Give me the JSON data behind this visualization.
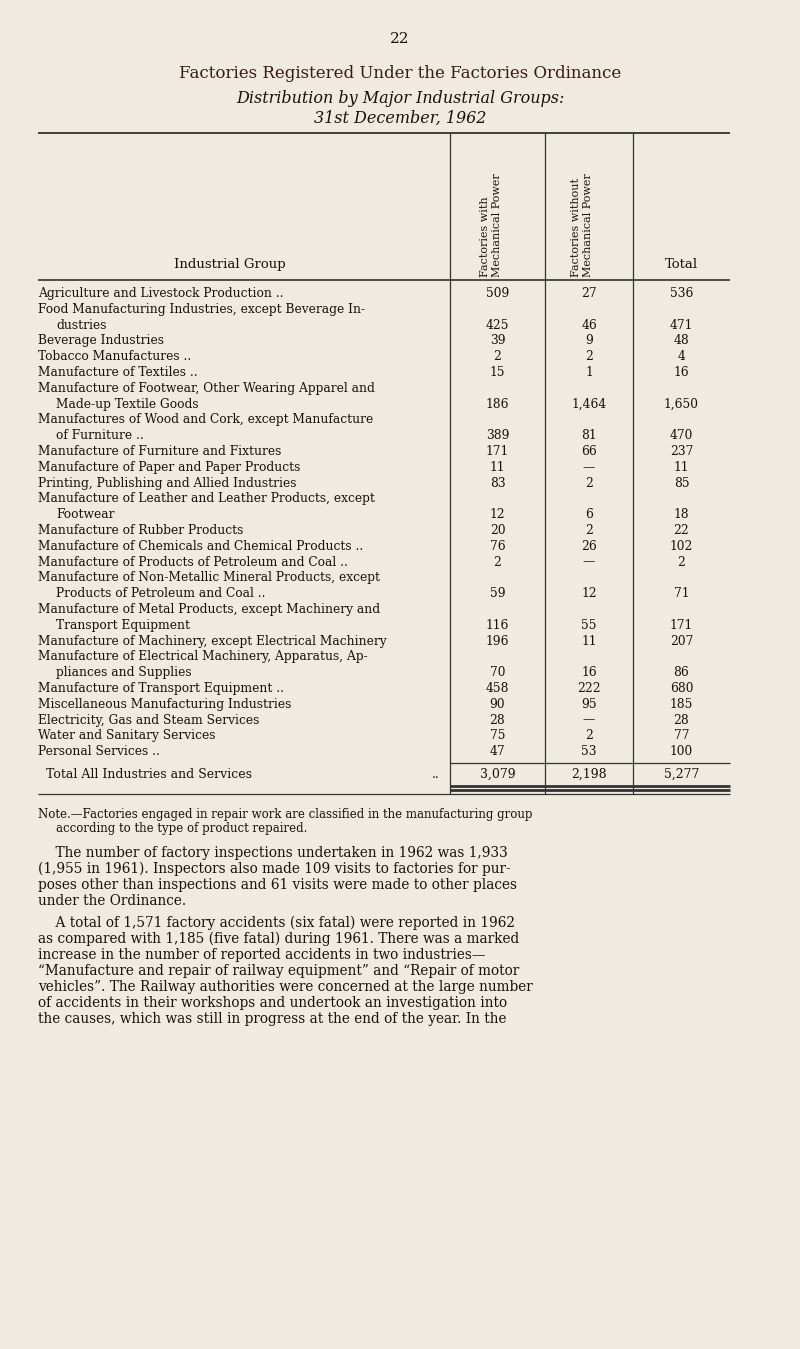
{
  "page_number": "22",
  "title_line1": "Factories Registered Under the Factories Ordinance",
  "title_line2": "Distribution by Major Industrial Groups:",
  "title_line3": "31st December, 1962",
  "bg_color": "#f0ebe0",
  "text_color": "#1a1208",
  "title_color": "#3a1a10",
  "table_rows": [
    [
      "Agriculture and Livestock Production ..",
      null,
      "509",
      "27",
      "536"
    ],
    [
      "Food Manufacturing Industries, except Beverage In-",
      "dustries",
      "425",
      "46",
      "471"
    ],
    [
      "Beverage Industries",
      null,
      "39",
      "9",
      "48"
    ],
    [
      "Tobacco Manufactures ..",
      null,
      "2",
      "2",
      "4"
    ],
    [
      "Manufacture of Textiles ..",
      null,
      "15",
      "1",
      "16"
    ],
    [
      "Manufacture of Footwear, Other Wearing Apparel and",
      "Made-up Textile Goods",
      "186",
      "1,464",
      "1,650"
    ],
    [
      "Manufactures of Wood and Cork, except Manufacture",
      "of Furniture ..",
      "389",
      "81",
      "470"
    ],
    [
      "Manufacture of Furniture and Fixtures",
      null,
      "171",
      "66",
      "237"
    ],
    [
      "Manufacture of Paper and Paper Products",
      null,
      "11",
      "—",
      "11"
    ],
    [
      "Printing, Publishing and Allied Industries",
      null,
      "83",
      "2",
      "85"
    ],
    [
      "Manufacture of Leather and Leather Products, except",
      "Footwear",
      "12",
      "6",
      "18"
    ],
    [
      "Manufacture of Rubber Products",
      null,
      "20",
      "2",
      "22"
    ],
    [
      "Manufacture of Chemicals and Chemical Products ..",
      null,
      "76",
      "26",
      "102"
    ],
    [
      "Manufacture of Products of Petroleum and Coal ..",
      null,
      "2",
      "—",
      "2"
    ],
    [
      "Manufacture of Non-Metallic Mineral Products, except",
      "Products of Petroleum and Coal ..",
      "59",
      "12",
      "71"
    ],
    [
      "Manufacture of Metal Products, except Machinery and",
      "Transport Equipment",
      "116",
      "55",
      "171"
    ],
    [
      "Manufacture of Machinery, except Electrical Machinery",
      null,
      "196",
      "11",
      "207"
    ],
    [
      "Manufacture of Electrical Machinery, Apparatus, Ap-",
      "pliances and Supplies",
      "70",
      "16",
      "86"
    ],
    [
      "Manufacture of Transport Equipment ..",
      null,
      "458",
      "222",
      "680"
    ],
    [
      "Miscellaneous Manufacturing Industries",
      null,
      "90",
      "95",
      "185"
    ],
    [
      "Electricity, Gas and Steam Services",
      null,
      "28",
      "—",
      "28"
    ],
    [
      "Water and Sanitary Services",
      null,
      "75",
      "2",
      "77"
    ],
    [
      "Personal Services ..",
      null,
      "47",
      "53",
      "100"
    ]
  ],
  "note_lines": [
    "Note.—Factories engaged in repair work are classified in the manufacturing group",
    "according to the type of product repaired."
  ],
  "para1_lines": [
    "    The number of factory inspections undertaken in 1962 was 1,933",
    "(1,955 in 1961). Inspectors also made 109 visits to factories for pur-",
    "poses other than inspections and 61 visits were made to other places",
    "under the Ordinance."
  ],
  "para2_lines": [
    "    A total of 1,571 factory accidents (six fatal) were reported in 1962",
    "as compared with 1,185 (five fatal) during 1961. There was a marked",
    "increase in the number of reported accidents in two industries—",
    "“Manufacture and repair of railway equipment” and “Repair of motor",
    "vehicles”. The Railway authorities were concerned at the large number",
    "of accidents in their workshops and undertook an investigation into",
    "the causes, which was still in progress at the end of the year. In the"
  ]
}
